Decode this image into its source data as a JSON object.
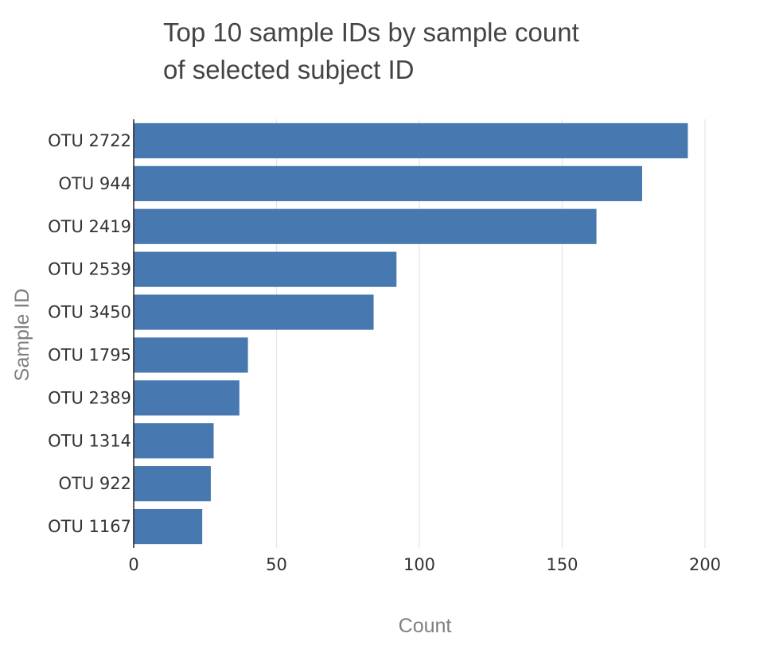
{
  "chart_data": {
    "type": "bar",
    "orientation": "horizontal",
    "title_lines": [
      "Top 10 sample IDs by sample count",
      "of selected subject ID"
    ],
    "xlabel": "Count",
    "ylabel": "Sample ID",
    "categories": [
      "OTU 2722",
      "OTU 944",
      "OTU 2419",
      "OTU 2539",
      "OTU 3450",
      "OTU 1795",
      "OTU 2389",
      "OTU 1314",
      "OTU 922",
      "OTU 1167"
    ],
    "values": [
      194,
      178,
      162,
      92,
      84,
      40,
      37,
      28,
      27,
      24
    ],
    "xlim": [
      0,
      200
    ],
    "xticks": [
      0,
      50,
      100,
      150,
      200
    ],
    "grid": true,
    "bar_color": "#4778b0"
  }
}
